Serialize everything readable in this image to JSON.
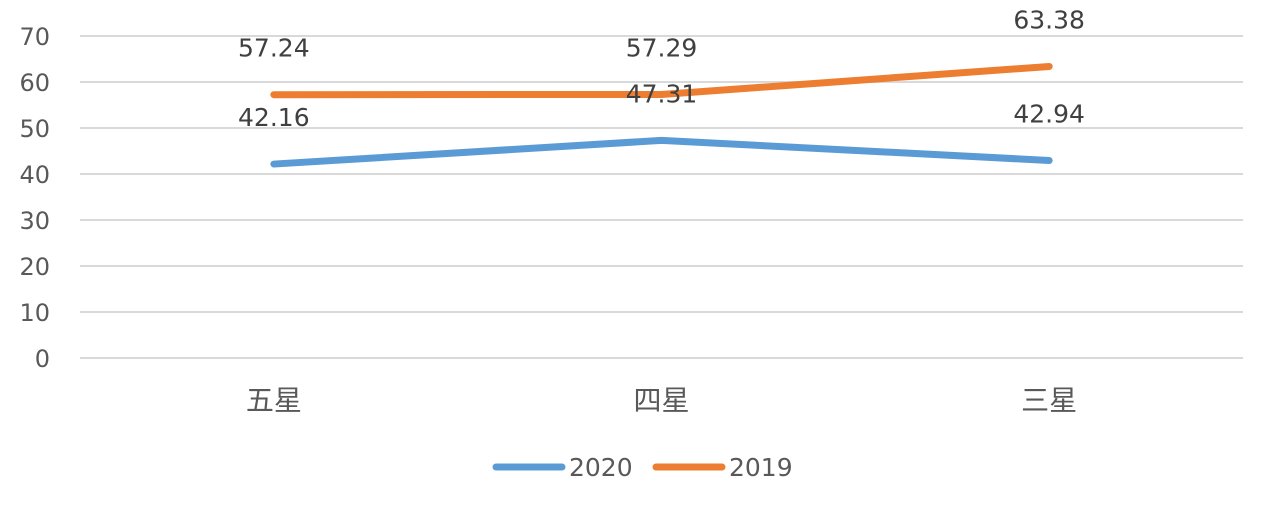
{
  "chart_data": {
    "type": "line",
    "categories": [
      "五星",
      "四星",
      "三星"
    ],
    "series": [
      {
        "name": "2020",
        "values": [
          42.16,
          47.31,
          42.94
        ],
        "color": "#5B9BD5",
        "labels": [
          "42.16",
          "47.31",
          "42.94"
        ]
      },
      {
        "name": "2019",
        "values": [
          57.24,
          57.29,
          63.38
        ],
        "color": "#ED7D31",
        "labels": [
          "57.24",
          "57.29",
          "63.38"
        ]
      }
    ],
    "y_ticks": [
      "0",
      "10",
      "20",
      "30",
      "40",
      "50",
      "60",
      "70"
    ],
    "ylim": [
      0,
      70
    ],
    "grid": true,
    "legend_position": "bottom",
    "grid_color": "#D9D9D9"
  }
}
